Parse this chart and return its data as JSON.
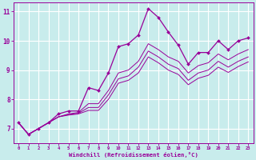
{
  "xlabel": "Windchill (Refroidissement éolien,°C)",
  "background_color": "#c8ecec",
  "line_color": "#990099",
  "grid_color": "#ffffff",
  "xlim": [
    -0.5,
    23.5
  ],
  "ylim": [
    6.5,
    11.3
  ],
  "yticks": [
    7,
    8,
    9,
    10,
    11
  ],
  "xticks": [
    0,
    1,
    2,
    3,
    4,
    5,
    6,
    7,
    8,
    9,
    10,
    11,
    12,
    13,
    14,
    15,
    16,
    17,
    18,
    19,
    20,
    21,
    22,
    23
  ],
  "hours": [
    0,
    1,
    2,
    3,
    4,
    5,
    6,
    7,
    8,
    9,
    10,
    11,
    12,
    13,
    14,
    15,
    16,
    17,
    18,
    19,
    20,
    21,
    22,
    23
  ],
  "temp": [
    7.2,
    6.8,
    7.0,
    7.2,
    7.5,
    7.6,
    7.6,
    8.4,
    8.3,
    8.9,
    9.8,
    9.9,
    10.2,
    11.1,
    10.8,
    10.3,
    9.85,
    9.2,
    9.6,
    9.6,
    10.0,
    9.7,
    10.0,
    10.1
  ],
  "wc1": [
    7.2,
    6.8,
    7.0,
    7.2,
    7.4,
    7.5,
    7.55,
    7.85,
    7.85,
    8.3,
    8.9,
    9.0,
    9.3,
    9.9,
    9.7,
    9.45,
    9.3,
    8.9,
    9.15,
    9.25,
    9.55,
    9.35,
    9.55,
    9.7
  ],
  "wc2": [
    7.2,
    6.8,
    7.0,
    7.2,
    7.4,
    7.48,
    7.52,
    7.72,
    7.72,
    8.15,
    8.7,
    8.8,
    9.1,
    9.65,
    9.45,
    9.2,
    9.05,
    8.65,
    8.9,
    9.0,
    9.3,
    9.1,
    9.3,
    9.45
  ],
  "wc3": [
    7.2,
    6.8,
    7.0,
    7.2,
    7.4,
    7.46,
    7.5,
    7.62,
    7.62,
    8.0,
    8.55,
    8.65,
    8.9,
    9.45,
    9.25,
    9.0,
    8.85,
    8.5,
    8.72,
    8.82,
    9.1,
    8.92,
    9.12,
    9.28
  ]
}
